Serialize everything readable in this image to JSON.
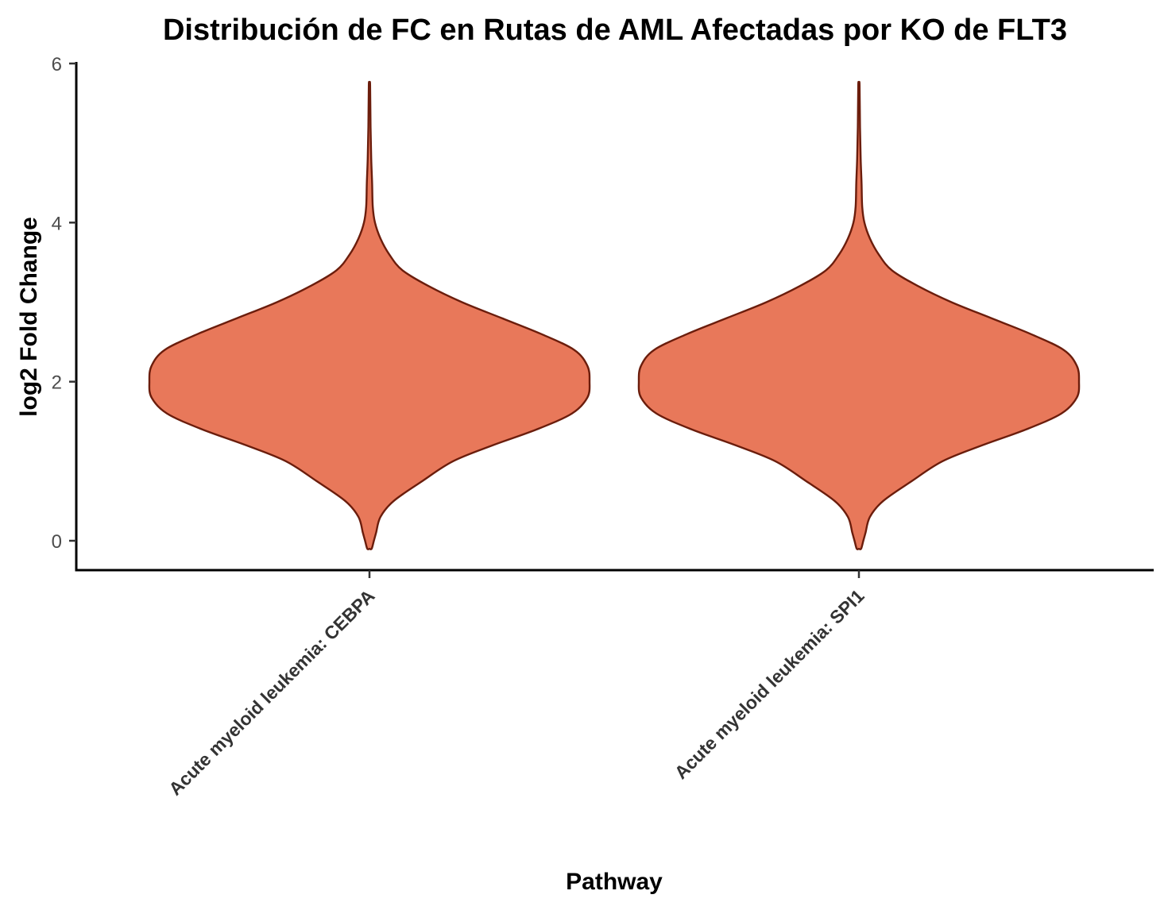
{
  "chart_data": {
    "type": "violin",
    "title": "Distribución de FC en Rutas de AML Afectadas por KO de FLT3",
    "xlabel": "Pathway",
    "ylabel": "log2 Fold Change",
    "ylim": [
      -0.37,
      6
    ],
    "yticks": [
      0,
      2,
      4,
      6
    ],
    "grid": false,
    "legend": "none",
    "fill_color": "#e8785a",
    "stroke_color": "#6b1d0c",
    "categories": [
      "Acute myeloid leukemia: CEBPA",
      "Acute myeloid leukemia: SPI1"
    ],
    "series": [
      {
        "category": "Acute myeloid leukemia: CEBPA",
        "y_min": -0.1,
        "y_max": 5.73,
        "density_profile": [
          [
            -0.1,
            0.01
          ],
          [
            0.0,
            0.02
          ],
          [
            0.1,
            0.03
          ],
          [
            0.3,
            0.05
          ],
          [
            0.5,
            0.11
          ],
          [
            0.75,
            0.24
          ],
          [
            1.0,
            0.38
          ],
          [
            1.2,
            0.56
          ],
          [
            1.4,
            0.76
          ],
          [
            1.6,
            0.92
          ],
          [
            1.8,
            0.99
          ],
          [
            2.0,
            1.0
          ],
          [
            2.2,
            0.99
          ],
          [
            2.4,
            0.93
          ],
          [
            2.6,
            0.78
          ],
          [
            2.8,
            0.6
          ],
          [
            3.0,
            0.42
          ],
          [
            3.2,
            0.27
          ],
          [
            3.4,
            0.15
          ],
          [
            3.6,
            0.09
          ],
          [
            3.8,
            0.05
          ],
          [
            4.0,
            0.025
          ],
          [
            4.2,
            0.015
          ],
          [
            4.5,
            0.012
          ],
          [
            4.8,
            0.008
          ],
          [
            5.2,
            0.005
          ],
          [
            5.73,
            0.003
          ]
        ]
      },
      {
        "category": "Acute myeloid leukemia: SPI1",
        "y_min": -0.1,
        "y_max": 5.73,
        "density_profile": [
          [
            -0.1,
            0.01
          ],
          [
            0.0,
            0.02
          ],
          [
            0.1,
            0.03
          ],
          [
            0.3,
            0.05
          ],
          [
            0.5,
            0.11
          ],
          [
            0.75,
            0.24
          ],
          [
            1.0,
            0.38
          ],
          [
            1.2,
            0.56
          ],
          [
            1.4,
            0.76
          ],
          [
            1.6,
            0.92
          ],
          [
            1.8,
            0.99
          ],
          [
            2.0,
            1.0
          ],
          [
            2.2,
            0.99
          ],
          [
            2.4,
            0.93
          ],
          [
            2.6,
            0.78
          ],
          [
            2.8,
            0.6
          ],
          [
            3.0,
            0.42
          ],
          [
            3.2,
            0.27
          ],
          [
            3.4,
            0.15
          ],
          [
            3.6,
            0.09
          ],
          [
            3.8,
            0.05
          ],
          [
            4.0,
            0.025
          ],
          [
            4.2,
            0.015
          ],
          [
            4.5,
            0.012
          ],
          [
            4.8,
            0.008
          ],
          [
            5.2,
            0.005
          ],
          [
            5.73,
            0.003
          ]
        ]
      }
    ]
  }
}
